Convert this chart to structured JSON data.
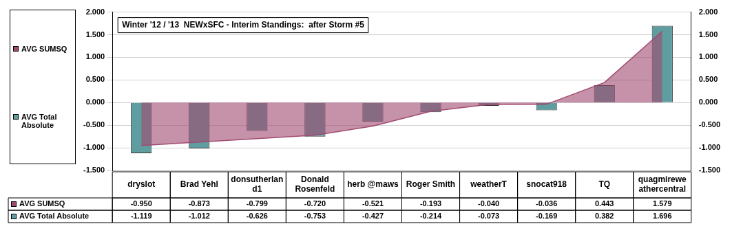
{
  "chart_data": {
    "type": "bar",
    "title": "Winter '12 / '13  NEWxSFC - Interim Standings:  after Storm #5",
    "categories": [
      "dryslot",
      "Brad Yehl",
      "donsutherland1",
      "Donald Rosenfeld",
      "herb @maws",
      "Roger Smith",
      "weatherT",
      "snocat918",
      "TQ",
      "quagmireweathercentral"
    ],
    "series": [
      {
        "name": "AVG SUMSQ",
        "type": "area",
        "color": "#a04a70",
        "values": [
          -0.95,
          -0.873,
          -0.799,
          -0.72,
          -0.521,
          -0.193,
          -0.04,
          -0.036,
          0.443,
          1.579
        ],
        "value_labels": [
          "-0.950",
          "-0.873",
          "-0.799",
          "-0.720",
          "-0.521",
          "-0.193",
          "-0.040",
          "-0.036",
          "0.443",
          "1.579"
        ]
      },
      {
        "name": "AVG Total Absolute",
        "color": "#5f9ea0",
        "values": [
          -1.119,
          -1.012,
          -0.626,
          -0.753,
          -0.427,
          -0.214,
          -0.073,
          -0.169,
          0.382,
          1.696
        ],
        "value_labels": [
          "-1.119",
          "-1.012",
          "-0.626",
          "-0.753",
          "-0.427",
          "-0.214",
          "-0.073",
          "-0.169",
          "0.382",
          "1.696"
        ]
      }
    ],
    "ylim": [
      -1.5,
      2.0
    ],
    "yticks": [
      {
        "value": -1.5,
        "label": "-1.500"
      },
      {
        "value": -1.0,
        "label": "-1.000"
      },
      {
        "value": -0.5,
        "label": "-0.500"
      },
      {
        "value": 0,
        "label": "0.000"
      },
      {
        "value": 0.5,
        "label": "0.500"
      },
      {
        "value": 1.0,
        "label": "1.000"
      },
      {
        "value": 1.5,
        "label": "1.500"
      },
      {
        "value": 2.0,
        "label": "2.000"
      }
    ],
    "y2lim": [
      -1.5,
      2.0
    ],
    "y2ticks": [
      {
        "value": -1.5,
        "label": "-1.500"
      },
      {
        "value": -1.0,
        "label": "-1.000"
      },
      {
        "value": -0.5,
        "label": "-0.500"
      },
      {
        "value": 0,
        "label": "0.000"
      },
      {
        "value": 0.5,
        "label": "0.500"
      },
      {
        "value": 1.0,
        "label": "1.000"
      },
      {
        "value": 1.5,
        "label": "1.500"
      },
      {
        "value": 2.0,
        "label": "2.000"
      }
    ],
    "grid": "y",
    "legend": "left",
    "marker": "none"
  }
}
